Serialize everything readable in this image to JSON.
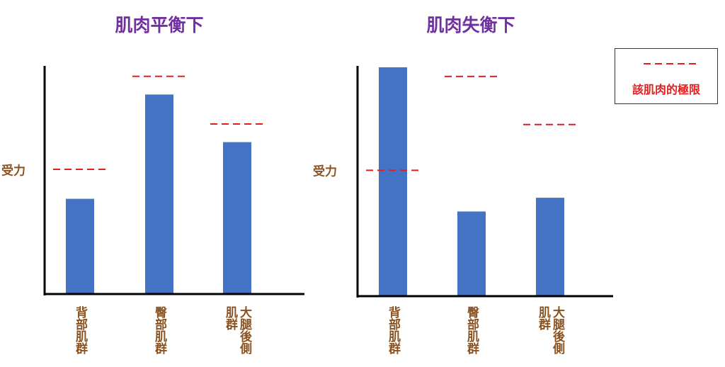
{
  "chart_data": [
    {
      "type": "bar",
      "title": "肌肉平衡下",
      "ylabel": "受力",
      "categories": [
        "背部肌群",
        "臀部肌群",
        "大腿後側肌群"
      ],
      "values": [
        42,
        88,
        67
      ],
      "limit_values": [
        55,
        96,
        75
      ],
      "color": "#4472c4",
      "ylim": [
        0,
        100
      ]
    },
    {
      "type": "bar",
      "title": "肌肉失衡下",
      "ylabel": "受力",
      "categories": [
        "背部肌群",
        "臀部肌群",
        "大腿後側肌群"
      ],
      "values": [
        100,
        37,
        43
      ],
      "limit_values": [
        55,
        96,
        75
      ],
      "color": "#4472c4",
      "ylim": [
        0,
        100
      ]
    }
  ],
  "legend": {
    "name": "該肌肉的極限",
    "color": "#e02020"
  }
}
